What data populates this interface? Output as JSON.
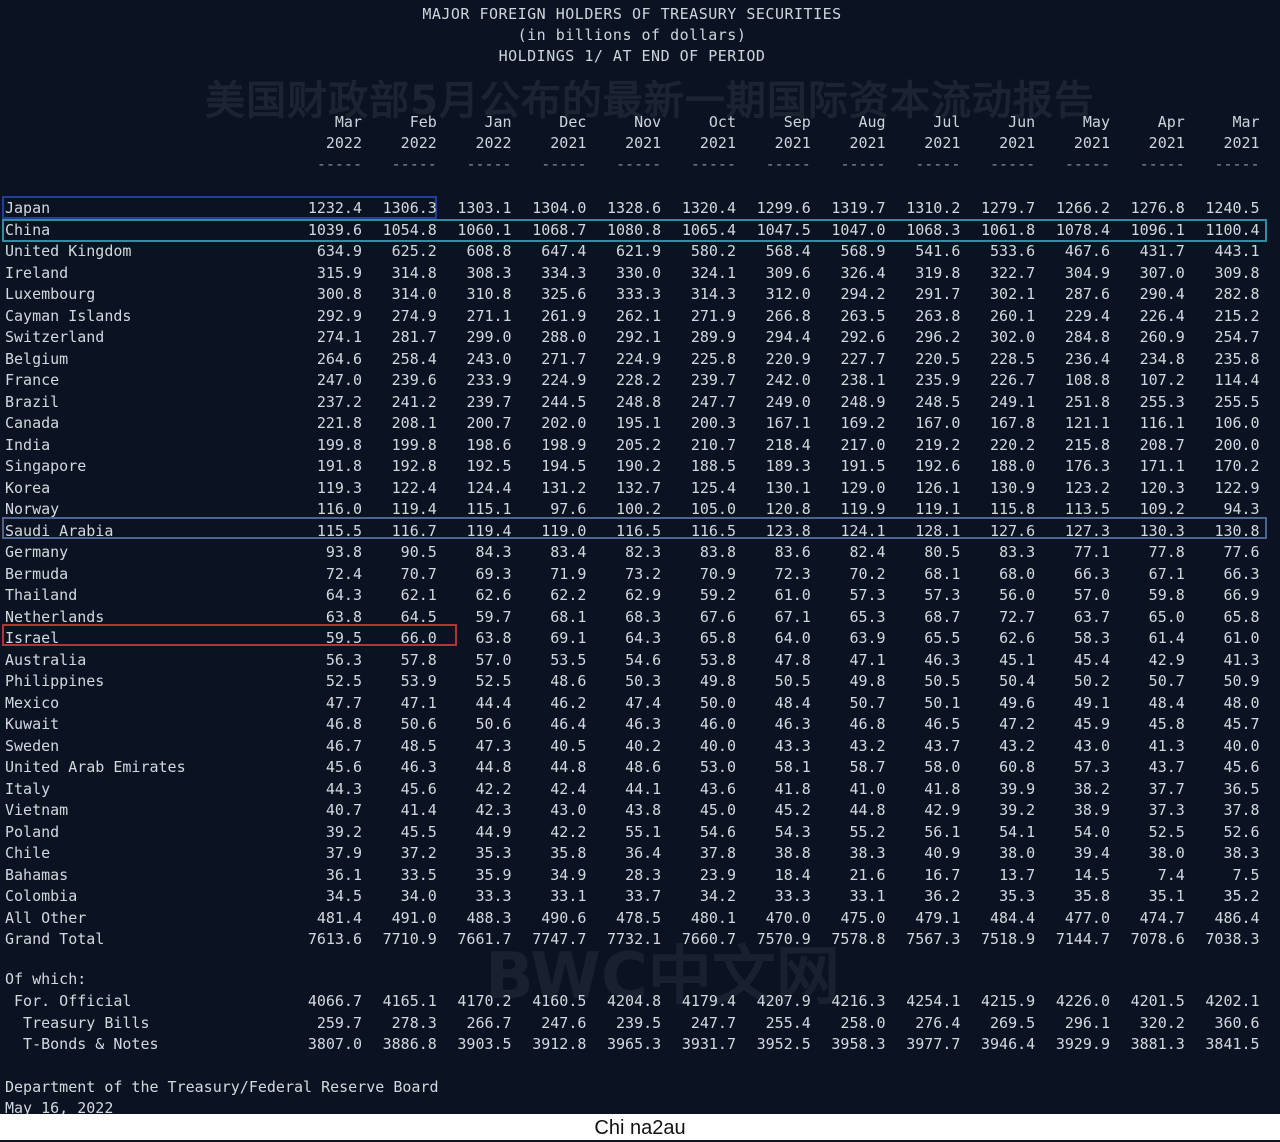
{
  "title": {
    "line1": "MAJOR FOREIGN HOLDERS OF TREASURY SECURITIES",
    "line2": "(in billions of dollars)",
    "line3": "HOLDINGS 1/ AT END OF PERIOD"
  },
  "watermark_top": "美国财政部5月公布的最新一期国际资本流动报告",
  "watermark_mid": "BWC中文网",
  "columns": [
    {
      "month": "Mar",
      "year": "2022"
    },
    {
      "month": "Feb",
      "year": "2022"
    },
    {
      "month": "Jan",
      "year": "2022"
    },
    {
      "month": "Dec",
      "year": "2021"
    },
    {
      "month": "Nov",
      "year": "2021"
    },
    {
      "month": "Oct",
      "year": "2021"
    },
    {
      "month": "Sep",
      "year": "2021"
    },
    {
      "month": "Aug",
      "year": "2021"
    },
    {
      "month": "Jul",
      "year": "2021"
    },
    {
      "month": "Jun",
      "year": "2021"
    },
    {
      "month": "May",
      "year": "2021"
    },
    {
      "month": "Apr",
      "year": "2021"
    },
    {
      "month": "Mar",
      "year": "2021"
    }
  ],
  "dash": "-----",
  "rows": [
    {
      "country": "Japan",
      "values": [
        "1232.4",
        "1306.3",
        "1303.1",
        "1304.0",
        "1328.6",
        "1320.4",
        "1299.6",
        "1319.7",
        "1310.2",
        "1279.7",
        "1266.2",
        "1276.8",
        "1240.5"
      ]
    },
    {
      "country": "China",
      "values": [
        "1039.6",
        "1054.8",
        "1060.1",
        "1068.7",
        "1080.8",
        "1065.4",
        "1047.5",
        "1047.0",
        "1068.3",
        "1061.8",
        "1078.4",
        "1096.1",
        "1100.4"
      ]
    },
    {
      "country": "United Kingdom",
      "values": [
        "634.9",
        "625.2",
        "608.8",
        "647.4",
        "621.9",
        "580.2",
        "568.4",
        "568.9",
        "541.6",
        "533.6",
        "467.6",
        "431.7",
        "443.1"
      ]
    },
    {
      "country": "Ireland",
      "values": [
        "315.9",
        "314.8",
        "308.3",
        "334.3",
        "330.0",
        "324.1",
        "309.6",
        "326.4",
        "319.8",
        "322.7",
        "304.9",
        "307.0",
        "309.8"
      ]
    },
    {
      "country": "Luxembourg",
      "values": [
        "300.8",
        "314.0",
        "310.8",
        "325.6",
        "333.3",
        "314.3",
        "312.0",
        "294.2",
        "291.7",
        "302.1",
        "287.6",
        "290.4",
        "282.8"
      ]
    },
    {
      "country": "Cayman Islands",
      "values": [
        "292.9",
        "274.9",
        "271.1",
        "261.9",
        "262.1",
        "271.9",
        "266.8",
        "263.5",
        "263.8",
        "260.1",
        "229.4",
        "226.4",
        "215.2"
      ]
    },
    {
      "country": "Switzerland",
      "values": [
        "274.1",
        "281.7",
        "299.0",
        "288.0",
        "292.1",
        "289.9",
        "294.4",
        "292.6",
        "296.2",
        "302.0",
        "284.8",
        "260.9",
        "254.7"
      ]
    },
    {
      "country": "Belgium",
      "values": [
        "264.6",
        "258.4",
        "243.0",
        "271.7",
        "224.9",
        "225.8",
        "220.9",
        "227.7",
        "220.5",
        "228.5",
        "236.4",
        "234.8",
        "235.8"
      ]
    },
    {
      "country": "France",
      "values": [
        "247.0",
        "239.6",
        "233.9",
        "224.9",
        "228.2",
        "239.7",
        "242.0",
        "238.1",
        "235.9",
        "226.7",
        "108.8",
        "107.2",
        "114.4"
      ]
    },
    {
      "country": "Brazil",
      "values": [
        "237.2",
        "241.2",
        "239.7",
        "244.5",
        "248.8",
        "247.7",
        "249.0",
        "248.9",
        "248.5",
        "249.1",
        "251.8",
        "255.3",
        "255.5"
      ]
    },
    {
      "country": "Canada",
      "values": [
        "221.8",
        "208.1",
        "200.7",
        "202.0",
        "195.1",
        "200.3",
        "167.1",
        "169.2",
        "167.0",
        "167.8",
        "121.1",
        "116.1",
        "106.0"
      ]
    },
    {
      "country": "India",
      "values": [
        "199.8",
        "199.8",
        "198.6",
        "198.9",
        "205.2",
        "210.7",
        "218.4",
        "217.0",
        "219.2",
        "220.2",
        "215.8",
        "208.7",
        "200.0"
      ]
    },
    {
      "country": "Singapore",
      "values": [
        "191.8",
        "192.8",
        "192.5",
        "194.5",
        "190.2",
        "188.5",
        "189.3",
        "191.5",
        "192.6",
        "188.0",
        "176.3",
        "171.1",
        "170.2"
      ]
    },
    {
      "country": "Korea",
      "values": [
        "119.3",
        "122.4",
        "124.4",
        "131.2",
        "132.7",
        "125.4",
        "130.1",
        "129.0",
        "126.1",
        "130.9",
        "123.2",
        "120.3",
        "122.9"
      ]
    },
    {
      "country": "Norway",
      "values": [
        "116.0",
        "119.4",
        "115.1",
        "97.6",
        "100.2",
        "105.0",
        "120.8",
        "119.9",
        "119.1",
        "115.8",
        "113.5",
        "109.2",
        "94.3"
      ]
    },
    {
      "country": "Saudi Arabia",
      "values": [
        "115.5",
        "116.7",
        "119.4",
        "119.0",
        "116.5",
        "116.5",
        "123.8",
        "124.1",
        "128.1",
        "127.6",
        "127.3",
        "130.3",
        "130.8"
      ]
    },
    {
      "country": "Germany",
      "values": [
        "93.8",
        "90.5",
        "84.3",
        "83.4",
        "82.3",
        "83.8",
        "83.6",
        "82.4",
        "80.5",
        "83.3",
        "77.1",
        "77.8",
        "77.6"
      ]
    },
    {
      "country": "Bermuda",
      "values": [
        "72.4",
        "70.7",
        "69.3",
        "71.9",
        "73.2",
        "70.9",
        "72.3",
        "70.2",
        "68.1",
        "68.0",
        "66.3",
        "67.1",
        "66.3"
      ]
    },
    {
      "country": "Thailand",
      "values": [
        "64.3",
        "62.1",
        "62.6",
        "62.2",
        "62.9",
        "59.2",
        "61.0",
        "57.3",
        "57.3",
        "56.0",
        "57.0",
        "59.8",
        "66.9"
      ]
    },
    {
      "country": "Netherlands",
      "values": [
        "63.8",
        "64.5",
        "59.7",
        "68.1",
        "68.3",
        "67.6",
        "67.1",
        "65.3",
        "68.7",
        "72.7",
        "63.7",
        "65.0",
        "65.8"
      ]
    },
    {
      "country": "Israel",
      "values": [
        "59.5",
        "66.0",
        "63.8",
        "69.1",
        "64.3",
        "65.8",
        "64.0",
        "63.9",
        "65.5",
        "62.6",
        "58.3",
        "61.4",
        "61.0"
      ]
    },
    {
      "country": "Australia",
      "values": [
        "56.3",
        "57.8",
        "57.0",
        "53.5",
        "54.6",
        "53.8",
        "47.8",
        "47.1",
        "46.3",
        "45.1",
        "45.4",
        "42.9",
        "41.3"
      ]
    },
    {
      "country": "Philippines",
      "values": [
        "52.5",
        "53.9",
        "52.5",
        "48.6",
        "50.3",
        "49.8",
        "50.5",
        "49.8",
        "50.5",
        "50.4",
        "50.2",
        "50.7",
        "50.9"
      ]
    },
    {
      "country": "Mexico",
      "values": [
        "47.7",
        "47.1",
        "44.4",
        "46.2",
        "47.4",
        "50.0",
        "48.4",
        "50.7",
        "50.1",
        "49.6",
        "49.1",
        "48.4",
        "48.0"
      ]
    },
    {
      "country": "Kuwait",
      "values": [
        "46.8",
        "50.6",
        "50.6",
        "46.4",
        "46.3",
        "46.0",
        "46.3",
        "46.8",
        "46.5",
        "47.2",
        "45.9",
        "45.8",
        "45.7"
      ]
    },
    {
      "country": "Sweden",
      "values": [
        "46.7",
        "48.5",
        "47.3",
        "40.5",
        "40.2",
        "40.0",
        "43.3",
        "43.2",
        "43.7",
        "43.2",
        "43.0",
        "41.3",
        "40.0"
      ]
    },
    {
      "country": "United Arab Emirates",
      "values": [
        "45.6",
        "46.3",
        "44.8",
        "44.8",
        "48.6",
        "53.0",
        "58.1",
        "58.7",
        "58.0",
        "60.8",
        "57.3",
        "43.7",
        "45.6"
      ]
    },
    {
      "country": "Italy",
      "values": [
        "44.3",
        "45.6",
        "42.2",
        "42.4",
        "44.1",
        "43.6",
        "41.8",
        "41.0",
        "41.8",
        "39.9",
        "38.2",
        "37.7",
        "36.5"
      ]
    },
    {
      "country": "Vietnam",
      "values": [
        "40.7",
        "41.4",
        "42.3",
        "43.0",
        "43.8",
        "45.0",
        "45.2",
        "44.8",
        "42.9",
        "39.2",
        "38.9",
        "37.3",
        "37.8"
      ]
    },
    {
      "country": "Poland",
      "values": [
        "39.2",
        "45.5",
        "44.9",
        "42.2",
        "55.1",
        "54.6",
        "54.3",
        "55.2",
        "56.1",
        "54.1",
        "54.0",
        "52.5",
        "52.6"
      ]
    },
    {
      "country": "Chile",
      "values": [
        "37.9",
        "37.2",
        "35.3",
        "35.8",
        "36.4",
        "37.8",
        "38.8",
        "38.3",
        "40.9",
        "38.0",
        "39.4",
        "38.0",
        "38.3"
      ]
    },
    {
      "country": "Bahamas",
      "values": [
        "36.1",
        "33.5",
        "35.9",
        "34.9",
        "28.3",
        "23.9",
        "18.4",
        "21.6",
        "16.7",
        "13.7",
        "14.5",
        "7.4",
        "7.5"
      ]
    },
    {
      "country": "Colombia",
      "values": [
        "34.5",
        "34.0",
        "33.3",
        "33.1",
        "33.7",
        "34.2",
        "33.3",
        "33.1",
        "36.2",
        "35.3",
        "35.8",
        "35.1",
        "35.2"
      ]
    },
    {
      "country": "All Other",
      "values": [
        "481.4",
        "491.0",
        "488.3",
        "490.6",
        "478.5",
        "480.1",
        "470.0",
        "475.0",
        "479.1",
        "484.4",
        "477.0",
        "474.7",
        "486.4"
      ]
    },
    {
      "country": "Grand Total",
      "values": [
        "7613.6",
        "7710.9",
        "7661.7",
        "7747.7",
        "7732.1",
        "7660.7",
        "7570.9",
        "7578.8",
        "7567.3",
        "7518.9",
        "7144.7",
        "7078.6",
        "7038.3"
      ]
    }
  ],
  "of_which": {
    "label": "Of which:",
    "rows": [
      {
        "label": " For. Official",
        "values": [
          "4066.7",
          "4165.1",
          "4170.2",
          "4160.5",
          "4204.8",
          "4179.4",
          "4207.9",
          "4216.3",
          "4254.1",
          "4215.9",
          "4226.0",
          "4201.5",
          "4202.1"
        ]
      },
      {
        "label": "  Treasury Bills",
        "values": [
          "259.7",
          "278.3",
          "266.7",
          "247.6",
          "239.5",
          "247.7",
          "255.4",
          "258.0",
          "276.4",
          "269.5",
          "296.1",
          "320.2",
          "360.6"
        ]
      },
      {
        "label": "  T-Bonds & Notes",
        "values": [
          "3807.0",
          "3886.8",
          "3903.5",
          "3912.8",
          "3965.3",
          "3931.7",
          "3952.5",
          "3958.3",
          "3977.7",
          "3946.4",
          "3929.9",
          "3881.3",
          "3841.5"
        ]
      }
    ]
  },
  "footer": {
    "line1": "Department of the Treasury/Federal Reserve Board",
    "line2": "May 16, 2022"
  },
  "credit": "Chi na2au"
}
